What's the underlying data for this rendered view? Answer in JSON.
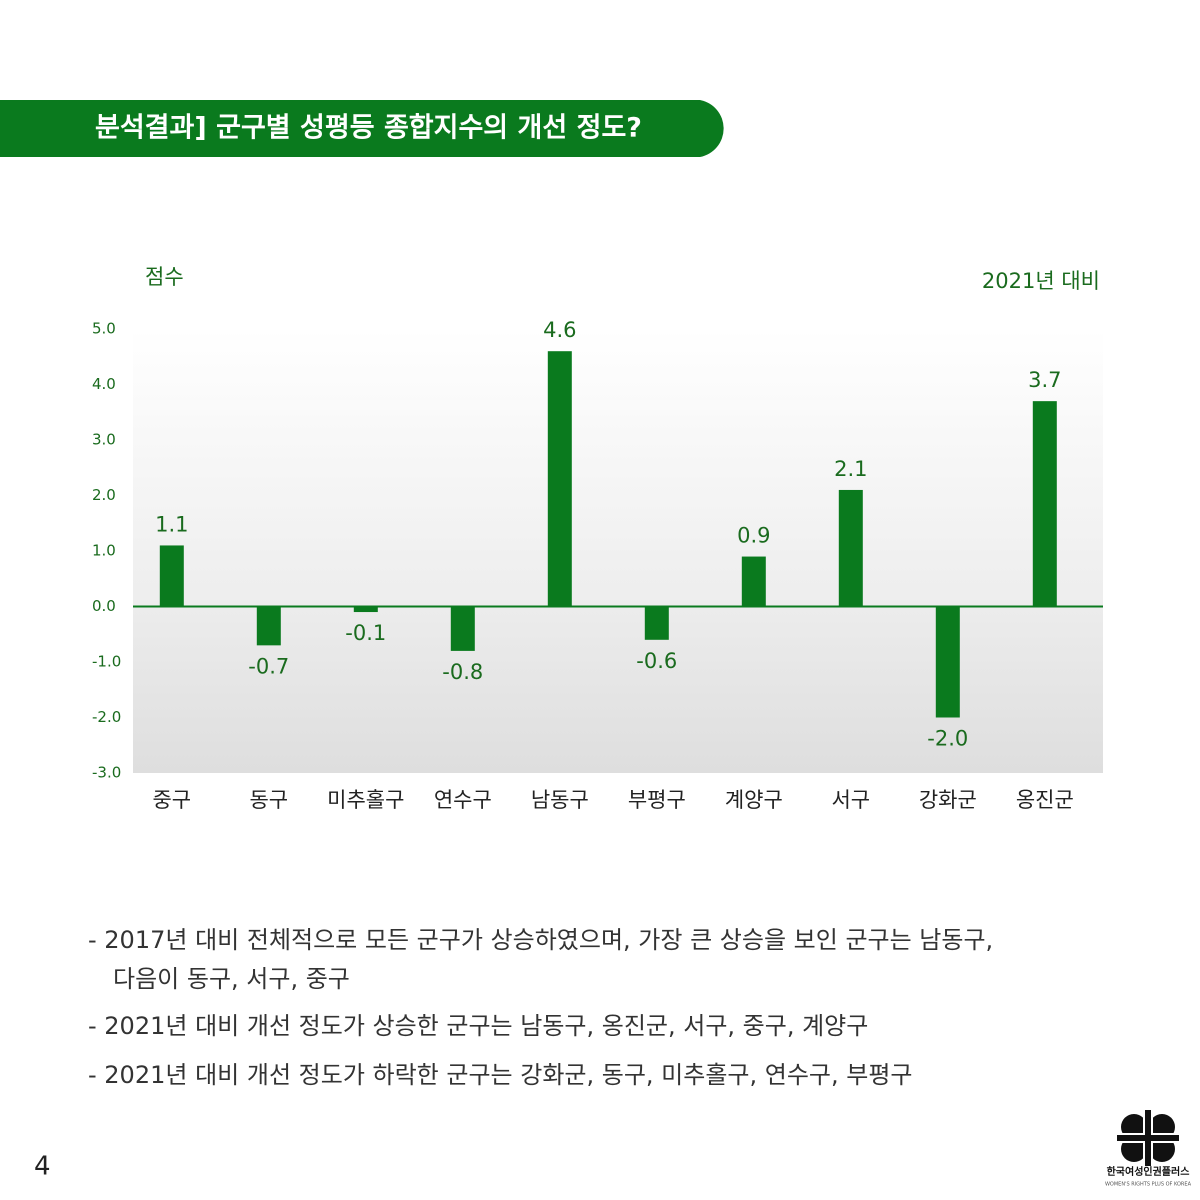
{
  "header": {
    "title": "분석결과] 군구별 성평등 종합지수의 개선 정도?"
  },
  "chart_data": {
    "type": "bar",
    "y_label": "점수",
    "note_label": "2021년 대비",
    "categories": [
      "중구",
      "동구",
      "미추홀구",
      "연수구",
      "남동구",
      "부평구",
      "계양구",
      "서구",
      "강화군",
      "옹진군"
    ],
    "values": [
      1.1,
      -0.7,
      -0.1,
      -0.8,
      4.6,
      -0.6,
      0.9,
      2.1,
      -2.0,
      3.7
    ],
    "value_labels": [
      "1.1",
      "-0.7",
      "-0.1",
      "-0.8",
      "4.6",
      "-0.6",
      "0.9",
      "2.1",
      "-2.0",
      "3.7"
    ],
    "color": "#0a7a1e",
    "ylim": [
      -3,
      5
    ],
    "yticks": [
      {
        "value": 5,
        "label": "5.0"
      },
      {
        "value": 4,
        "label": "4.0"
      },
      {
        "value": 3,
        "label": "3.0"
      },
      {
        "value": 2,
        "label": "2.0"
      },
      {
        "value": 1,
        "label": "1.0"
      },
      {
        "value": 0,
        "label": "0.0"
      },
      {
        "value": -1,
        "label": "-1.0"
      },
      {
        "value": -2,
        "label": "-2.0"
      },
      {
        "value": -3,
        "label": "-3.0"
      }
    ]
  },
  "notes": [
    "- 2017년 대비 전체적으로 모든 군구가 상승하였으며, 가장 큰 상승을 보인 군구는 남동구,",
    "다음이 동구, 서구, 중구",
    "- 2021년 대비 개선 정도가 상승한 군구는 남동구, 옹진군, 서구, 중구, 계양구",
    "- 2021년 대비 개선 정도가 하락한 군구는 강화군, 동구, 미추홀구, 연수구, 부평구"
  ],
  "page_number": "4",
  "logo": {
    "name": "한국여성인권플러스",
    "subtitle": "WOMEN'S RIGHTS PLUS OF KOREA"
  }
}
